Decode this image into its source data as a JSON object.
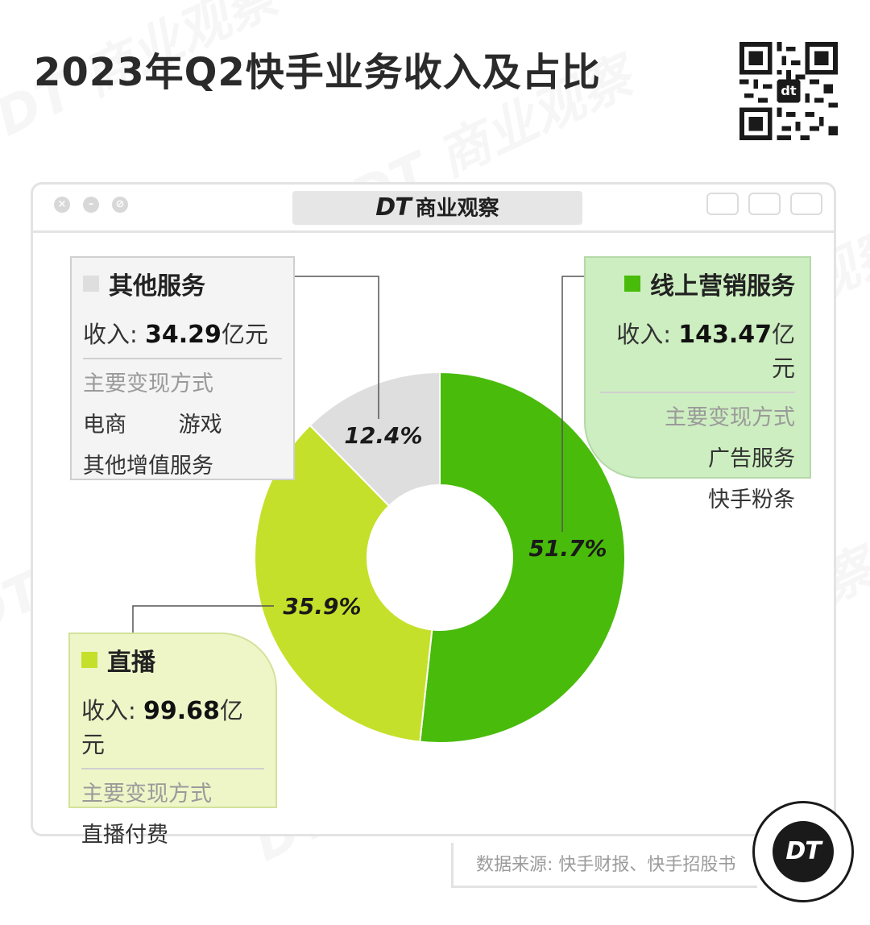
{
  "title": "2023年Q2快手业务收入及占比",
  "brand": {
    "dt": "DT",
    "name": "商业观察"
  },
  "logo_text": "DT",
  "source": "数据来源: 快手财报、快手招股书",
  "colors": {
    "online_marketing": "#49bb0b",
    "live": "#c5e02a",
    "other": "#dedede"
  },
  "cards": {
    "other": {
      "title": "其他服务",
      "revenue_label": "收入: ",
      "revenue_value": "34.29",
      "revenue_unit": "亿元",
      "sub": "主要变现方式",
      "items": [
        "电商",
        "游戏",
        "其他增值服务"
      ]
    },
    "online": {
      "title": "线上营销服务",
      "revenue_label": "收入: ",
      "revenue_value": "143.47",
      "revenue_unit": "亿元",
      "sub": "主要变现方式",
      "items": [
        "广告服务",
        "快手粉条"
      ]
    },
    "live": {
      "title": "直播",
      "revenue_label": "收入: ",
      "revenue_value": "99.68",
      "revenue_unit": "亿元",
      "sub": "主要变现方式",
      "items": [
        "直播付费"
      ]
    }
  },
  "chart_data": {
    "type": "pie",
    "title": "2023年Q2快手业务收入及占比",
    "categories": [
      "线上营销服务",
      "直播",
      "其他服务"
    ],
    "values": [
      143.47,
      99.68,
      34.29
    ],
    "percent_labels": [
      "51.7%",
      "35.9%",
      "12.4%"
    ],
    "shares": [
      51.7,
      35.9,
      12.4
    ],
    "colors": [
      "#49bb0b",
      "#c5e02a",
      "#dedede"
    ],
    "donut": true
  }
}
